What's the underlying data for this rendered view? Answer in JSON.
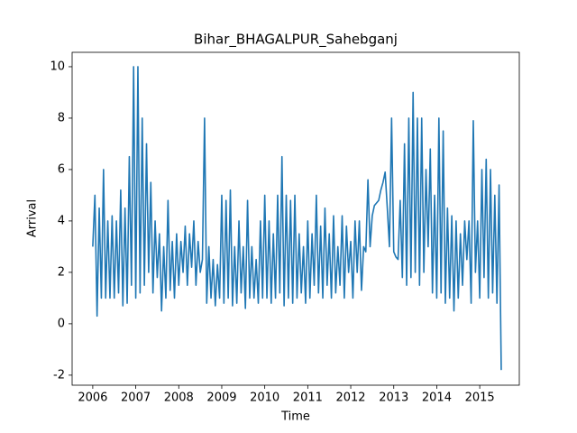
{
  "chart_data": {
    "type": "line",
    "title": "Bihar_BHAGALPUR_Sahebganj",
    "x_label": "Time",
    "y_label": "Arrival",
    "color": "#1f77b4",
    "xlim": [
      2005.52,
      2015.92
    ],
    "xticks": [
      2006,
      2007,
      2008,
      2009,
      2010,
      2011,
      2012,
      2013,
      2014,
      2015
    ],
    "ylim": [
      -2.39,
      10.56
    ],
    "yticks": [
      -2,
      0,
      2,
      4,
      6,
      8,
      10
    ],
    "grid": false,
    "x": [
      2006.0,
      2006.05,
      2006.1,
      2006.15,
      2006.2,
      2006.25,
      2006.3,
      2006.35,
      2006.4,
      2006.45,
      2006.5,
      2006.55,
      2006.6,
      2006.65,
      2006.7,
      2006.75,
      2006.8,
      2006.85,
      2006.9,
      2006.95,
      2007.0,
      2007.05,
      2007.1,
      2007.15,
      2007.2,
      2007.25,
      2007.3,
      2007.35,
      2007.4,
      2007.45,
      2007.5,
      2007.55,
      2007.6,
      2007.65,
      2007.7,
      2007.75,
      2007.8,
      2007.85,
      2007.9,
      2007.95,
      2008.0,
      2008.05,
      2008.1,
      2008.15,
      2008.2,
      2008.25,
      2008.3,
      2008.35,
      2008.4,
      2008.45,
      2008.5,
      2008.55,
      2008.6,
      2008.65,
      2008.7,
      2008.75,
      2008.8,
      2008.85,
      2008.9,
      2008.95,
      2009.0,
      2009.05,
      2009.1,
      2009.15,
      2009.2,
      2009.25,
      2009.3,
      2009.35,
      2009.4,
      2009.45,
      2009.5,
      2009.55,
      2009.6,
      2009.65,
      2009.7,
      2009.75,
      2009.8,
      2009.85,
      2009.9,
      2009.95,
      2010.0,
      2010.05,
      2010.1,
      2010.15,
      2010.2,
      2010.25,
      2010.3,
      2010.35,
      2010.4,
      2010.45,
      2010.5,
      2010.55,
      2010.6,
      2010.65,
      2010.7,
      2010.75,
      2010.8,
      2010.85,
      2010.9,
      2010.95,
      2011.0,
      2011.05,
      2011.1,
      2011.15,
      2011.2,
      2011.25,
      2011.3,
      2011.35,
      2011.4,
      2011.45,
      2011.5,
      2011.55,
      2011.6,
      2011.65,
      2011.7,
      2011.75,
      2011.8,
      2011.85,
      2011.9,
      2011.95,
      2012.0,
      2012.05,
      2012.1,
      2012.15,
      2012.2,
      2012.25,
      2012.3,
      2012.35,
      2012.4,
      2012.45,
      2012.5,
      2012.55,
      2012.6,
      2012.65,
      2012.7,
      2012.75,
      2012.8,
      2012.85,
      2012.9,
      2012.95,
      2013.0,
      2013.05,
      2013.1,
      2013.15,
      2013.2,
      2013.25,
      2013.3,
      2013.35,
      2013.4,
      2013.45,
      2013.5,
      2013.55,
      2013.6,
      2013.65,
      2013.7,
      2013.75,
      2013.8,
      2013.85,
      2013.9,
      2013.95,
      2014.0,
      2014.05,
      2014.1,
      2014.15,
      2014.2,
      2014.25,
      2014.3,
      2014.35,
      2014.4,
      2014.45,
      2014.5,
      2014.55,
      2014.6,
      2014.65,
      2014.7,
      2014.75,
      2014.8,
      2014.85,
      2014.9,
      2014.95,
      2015.0,
      2015.05,
      2015.1,
      2015.15,
      2015.2,
      2015.25,
      2015.3,
      2015.35,
      2015.4,
      2015.45,
      2015.5
    ],
    "values": [
      3.0,
      5.0,
      0.3,
      4.5,
      1.0,
      6.0,
      1.0,
      4.0,
      1.0,
      4.2,
      1.0,
      4.0,
      1.2,
      5.2,
      0.7,
      4.5,
      0.8,
      6.5,
      1.5,
      10.0,
      1.0,
      10.0,
      1.2,
      8.0,
      1.5,
      7.0,
      2.0,
      5.5,
      1.2,
      4.0,
      1.8,
      3.5,
      0.5,
      3.0,
      1.0,
      4.8,
      1.3,
      3.2,
      1.0,
      3.5,
      1.5,
      3.2,
      2.0,
      3.8,
      1.5,
      3.5,
      2.2,
      4.0,
      1.5,
      3.2,
      2.0,
      2.5,
      8.0,
      0.8,
      3.0,
      1.0,
      2.5,
      0.7,
      2.3,
      1.0,
      5.0,
      0.8,
      4.8,
      1.0,
      5.2,
      0.7,
      3.0,
      0.8,
      4.0,
      1.2,
      3.0,
      0.6,
      4.8,
      1.0,
      3.0,
      1.0,
      2.5,
      0.8,
      4.0,
      1.0,
      5.0,
      1.0,
      4.0,
      0.8,
      3.5,
      1.0,
      5.0,
      1.2,
      6.5,
      0.7,
      5.0,
      1.0,
      4.8,
      0.8,
      5.0,
      1.0,
      3.5,
      1.2,
      3.0,
      0.8,
      4.0,
      1.0,
      3.5,
      1.5,
      5.0,
      1.2,
      3.8,
      1.0,
      4.5,
      1.5,
      3.5,
      1.0,
      4.2,
      1.2,
      3.0,
      1.5,
      4.2,
      1.0,
      3.8,
      2.0,
      3.2,
      1.0,
      4.0,
      2.0,
      4.0,
      1.3,
      3.0,
      2.8,
      5.6,
      3.0,
      4.2,
      4.6,
      4.7,
      4.8,
      5.2,
      5.5,
      5.9,
      4.5,
      3.0,
      8.0,
      2.8,
      2.6,
      2.5,
      4.8,
      1.8,
      7.0,
      1.5,
      8.0,
      1.8,
      9.0,
      2.0,
      8.0,
      1.5,
      8.0,
      2.0,
      6.0,
      3.0,
      6.8,
      1.2,
      5.0,
      1.0,
      8.0,
      1.2,
      7.5,
      0.8,
      4.5,
      1.0,
      4.2,
      0.5,
      4.0,
      1.0,
      3.5,
      1.5,
      4.0,
      2.5,
      4.0,
      0.8,
      7.9,
      2.0,
      4.0,
      1.0,
      6.0,
      1.8,
      6.4,
      1.0,
      6.0,
      1.2,
      5.0,
      0.8,
      5.4,
      -1.8
    ]
  }
}
